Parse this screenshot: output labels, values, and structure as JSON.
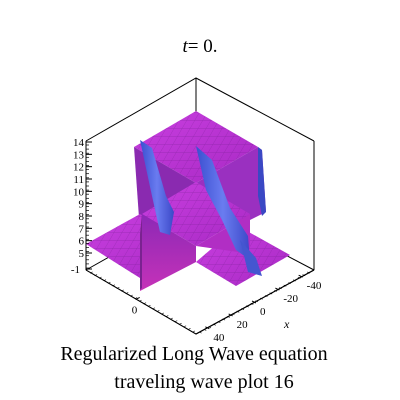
{
  "chart_data": {
    "type": "surface3d",
    "title": "t = 0.",
    "title_var": "t",
    "title_value": "= 0.",
    "xlabel": "x",
    "x_ticks": [
      "-40",
      "-20",
      "0",
      "20",
      "40"
    ],
    "y_ticks": [
      "0"
    ],
    "z_ticks": [
      "-1",
      "5",
      "6",
      "7",
      "8",
      "9",
      "10",
      "11",
      "12",
      "13",
      "14"
    ],
    "zlim": [
      -1,
      14
    ],
    "surface_color": "#cc33cc",
    "wave_color": "#4a55d8",
    "caption_line1": "Regularized Long Wave equation",
    "caption_line2": "traveling wave plot 16"
  }
}
